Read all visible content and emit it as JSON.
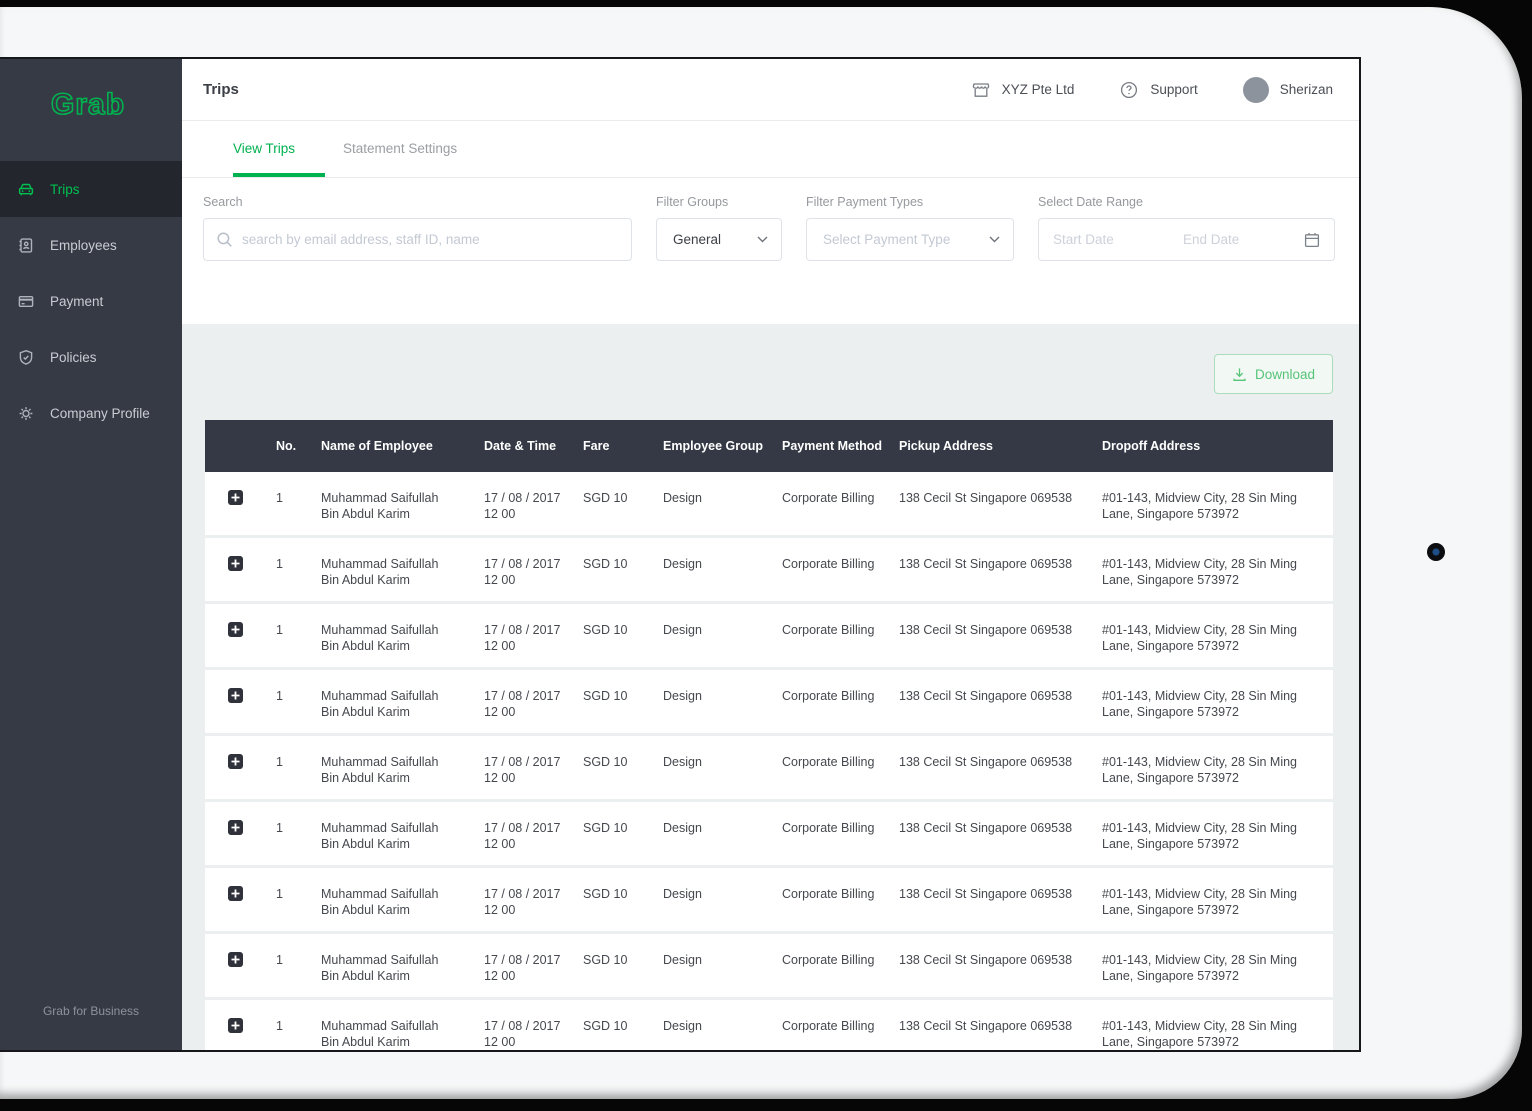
{
  "colors": {
    "brand_green": "#00b14f",
    "sidebar_bg": "#363a44",
    "sidebar_active_bg": "#23262d",
    "table_header_bg": "#343945",
    "band_bg": "#ebeff0",
    "download_green": "#57c47a"
  },
  "sidebar": {
    "logo": "Grab",
    "items": [
      {
        "label": "Trips",
        "icon": "car-icon",
        "active": true
      },
      {
        "label": "Employees",
        "icon": "id-badge-icon",
        "active": false
      },
      {
        "label": "Payment",
        "icon": "credit-card-icon",
        "active": false
      },
      {
        "label": "Policies",
        "icon": "shield-check-icon",
        "active": false
      },
      {
        "label": "Company Profile",
        "icon": "gear-icon",
        "active": false
      }
    ],
    "footer": "Grab for Business"
  },
  "header": {
    "title": "Trips",
    "company": "XYZ Pte Ltd",
    "support": "Support",
    "user": "Sherizan"
  },
  "tabs": [
    {
      "label": "View Trips",
      "active": true
    },
    {
      "label": "Statement Settings",
      "active": false
    }
  ],
  "filters": {
    "search": {
      "label": "Search",
      "placeholder": "search by email address, staff ID, name",
      "value": ""
    },
    "groups": {
      "label": "Filter Groups",
      "selected": "General"
    },
    "payment_types": {
      "label": "Filter Payment Types",
      "placeholder": "Select Payment Type"
    },
    "date_range": {
      "label": "Select Date Range",
      "start_placeholder": "Start Date",
      "end_placeholder": "End Date"
    }
  },
  "toolbar": {
    "download_label": "Download"
  },
  "table": {
    "columns": [
      "",
      "No.",
      "Name of Employee",
      "Date & Time",
      "Fare",
      "Employee Group",
      "Payment Method",
      "Pickup Address",
      "Dropoff Address"
    ],
    "rows": [
      {
        "no": "1",
        "name": "Muhammad Saifullah Bin Abdul Karim",
        "datetime": "17 / 08 / 2017 12 00",
        "fare": "SGD 10",
        "group": "Design",
        "payment": "Corporate Billing",
        "pickup": "138 Cecil St Singapore 069538",
        "dropoff": "#01-143, Midview City, 28 Sin Ming Lane, Singapore 573972"
      },
      {
        "no": "1",
        "name": "Muhammad Saifullah Bin Abdul Karim",
        "datetime": "17 / 08 / 2017 12 00",
        "fare": "SGD 10",
        "group": "Design",
        "payment": "Corporate Billing",
        "pickup": "138 Cecil St Singapore 069538",
        "dropoff": "#01-143, Midview City, 28 Sin Ming Lane, Singapore 573972"
      },
      {
        "no": "1",
        "name": "Muhammad Saifullah Bin Abdul Karim",
        "datetime": "17 / 08 / 2017 12 00",
        "fare": "SGD 10",
        "group": "Design",
        "payment": "Corporate Billing",
        "pickup": "138 Cecil St Singapore 069538",
        "dropoff": "#01-143, Midview City, 28 Sin Ming Lane, Singapore 573972"
      },
      {
        "no": "1",
        "name": "Muhammad Saifullah Bin Abdul Karim",
        "datetime": "17 / 08 / 2017 12 00",
        "fare": "SGD 10",
        "group": "Design",
        "payment": "Corporate Billing",
        "pickup": "138 Cecil St Singapore 069538",
        "dropoff": "#01-143, Midview City, 28 Sin Ming Lane, Singapore 573972"
      },
      {
        "no": "1",
        "name": "Muhammad Saifullah Bin Abdul Karim",
        "datetime": "17 / 08 / 2017 12 00",
        "fare": "SGD 10",
        "group": "Design",
        "payment": "Corporate Billing",
        "pickup": "138 Cecil St Singapore 069538",
        "dropoff": "#01-143, Midview City, 28 Sin Ming Lane, Singapore 573972"
      },
      {
        "no": "1",
        "name": "Muhammad Saifullah Bin Abdul Karim",
        "datetime": "17 / 08 / 2017 12 00",
        "fare": "SGD 10",
        "group": "Design",
        "payment": "Corporate Billing",
        "pickup": "138 Cecil St Singapore 069538",
        "dropoff": "#01-143, Midview City, 28 Sin Ming Lane, Singapore 573972"
      },
      {
        "no": "1",
        "name": "Muhammad Saifullah Bin Abdul Karim",
        "datetime": "17 / 08 / 2017 12 00",
        "fare": "SGD 10",
        "group": "Design",
        "payment": "Corporate Billing",
        "pickup": "138 Cecil St Singapore 069538",
        "dropoff": "#01-143, Midview City, 28 Sin Ming Lane, Singapore 573972"
      },
      {
        "no": "1",
        "name": "Muhammad Saifullah Bin Abdul Karim",
        "datetime": "17 / 08 / 2017 12 00",
        "fare": "SGD 10",
        "group": "Design",
        "payment": "Corporate Billing",
        "pickup": "138 Cecil St Singapore 069538",
        "dropoff": "#01-143, Midview City, 28 Sin Ming Lane, Singapore 573972"
      },
      {
        "no": "1",
        "name": "Muhammad Saifullah Bin Abdul Karim",
        "datetime": "17 / 08 / 2017 12 00",
        "fare": "SGD 10",
        "group": "Design",
        "payment": "Corporate Billing",
        "pickup": "138 Cecil St Singapore 069538",
        "dropoff": "#01-143, Midview City, 28 Sin Ming Lane, Singapore 573972"
      }
    ]
  }
}
